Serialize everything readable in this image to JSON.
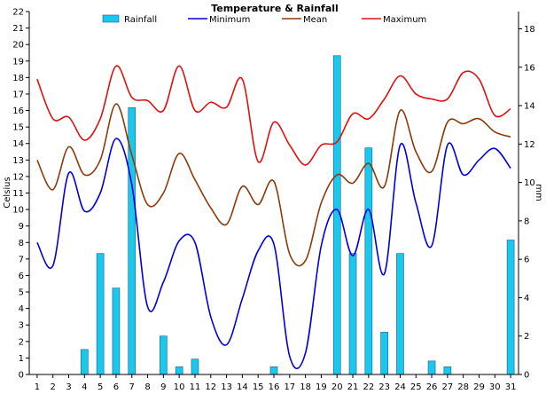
{
  "chart_data": {
    "type": "bar+line",
    "title": "Temperature & Rainfall",
    "ylabel_left": "Celsius",
    "ylabel_right": "mm",
    "ylim_left": [
      0,
      22
    ],
    "yticks_left": [
      0,
      1,
      2,
      3,
      4,
      5,
      6,
      7,
      8,
      9,
      10,
      11,
      12,
      13,
      14,
      15,
      16,
      17,
      18,
      19,
      20,
      21,
      22
    ],
    "ylim_right": [
      0,
      18.9
    ],
    "yticks_right": [
      0,
      2,
      4,
      6,
      8,
      10,
      12,
      14,
      16,
      18
    ],
    "x": [
      1,
      2,
      3,
      4,
      5,
      6,
      7,
      8,
      9,
      10,
      11,
      12,
      13,
      14,
      15,
      16,
      17,
      18,
      19,
      20,
      21,
      22,
      23,
      24,
      25,
      26,
      27,
      28,
      29,
      30,
      31
    ],
    "legend": [
      "Rainfall",
      "Minimum",
      "Mean",
      "Maximum"
    ],
    "colors": {
      "rainfall": "#1ac8ec",
      "minimum": "#0000dd",
      "mean": "#8b3a0a",
      "maximum": "#e01010"
    },
    "rainfall": [
      0,
      0,
      0,
      1.3,
      6.3,
      4.5,
      13.9,
      0,
      2.0,
      0.4,
      0.8,
      0,
      0,
      0,
      0,
      0.4,
      0,
      0,
      0,
      16.6,
      6.3,
      11.8,
      2.2,
      6.3,
      0,
      0.7,
      0.4,
      0,
      0,
      0,
      7.0
    ],
    "series": [
      {
        "name": "Minimum",
        "values": [
          8.0,
          6.6,
          12.2,
          9.9,
          11.0,
          14.3,
          11.5,
          4.1,
          5.6,
          8.1,
          8.0,
          3.5,
          1.8,
          4.6,
          7.5,
          7.9,
          1.1,
          1.3,
          7.8,
          10.0,
          7.2,
          10.0,
          6.1,
          13.9,
          10.4,
          7.8,
          13.9,
          12.1,
          13.0,
          13.7,
          12.5
        ]
      },
      {
        "name": "Mean",
        "values": [
          13.0,
          11.2,
          13.8,
          12.1,
          13.0,
          16.4,
          13.3,
          10.3,
          11.0,
          13.4,
          11.8,
          10.1,
          9.1,
          11.4,
          10.3,
          11.7,
          7.3,
          6.9,
          10.4,
          12.1,
          11.6,
          12.8,
          11.4,
          16.0,
          13.5,
          12.3,
          15.3,
          15.2,
          15.5,
          14.7,
          14.4
        ]
      },
      {
        "name": "Maximum",
        "values": [
          17.9,
          15.5,
          15.6,
          14.2,
          15.5,
          18.7,
          16.8,
          16.6,
          16.0,
          18.7,
          16.0,
          16.5,
          16.2,
          17.9,
          12.9,
          15.3,
          13.9,
          12.7,
          13.9,
          14.1,
          15.8,
          15.5,
          16.7,
          18.1,
          17.0,
          16.7,
          16.7,
          18.3,
          17.9,
          15.7,
          16.1
        ]
      }
    ]
  }
}
